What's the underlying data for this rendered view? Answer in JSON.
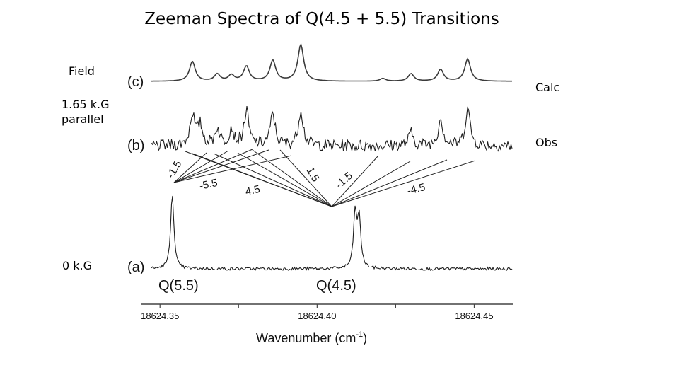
{
  "slide": {
    "title": "Zeeman Spectra of Q(4.5 + 5.5) Transitions",
    "field_label": "Field",
    "field_value_line1": "1.65 k.G",
    "field_value_line2": "parallel",
    "zero_field_label": "0 k.G",
    "calc_label": "Calc",
    "obs_label": "Obs"
  },
  "chart_data": {
    "type": "line",
    "xlabel": "Wavenumber (cm",
    "xlabel_sup": "-1",
    "xlabel_close": ")",
    "xlim": [
      18624.3441,
      18624.4625
    ],
    "ticks": [
      {
        "value": 18624.35,
        "label": "18624.35"
      },
      {
        "value": 18624.375,
        "label": ""
      },
      {
        "value": 18624.4,
        "label": "18624.40"
      },
      {
        "value": 18624.425,
        "label": ""
      },
      {
        "value": 18624.45,
        "label": "18624.45"
      }
    ],
    "grid": false,
    "traces": [
      {
        "panel": "(c)",
        "kind": "calculated",
        "color": "#3a3a3a",
        "noise": 0,
        "peaks": [
          {
            "x": 18624.3603,
            "h": 1.0
          },
          {
            "x": 18624.3682,
            "h": 0.35
          },
          {
            "x": 18624.3727,
            "h": 0.3
          },
          {
            "x": 18624.3775,
            "h": 0.75
          },
          {
            "x": 18624.3859,
            "h": 1.05
          },
          {
            "x": 18624.3948,
            "h": 1.85
          },
          {
            "x": 18624.4209,
            "h": 0.14
          },
          {
            "x": 18624.4299,
            "h": 0.38
          },
          {
            "x": 18624.4393,
            "h": 0.6
          },
          {
            "x": 18624.4479,
            "h": 1.12
          }
        ]
      },
      {
        "panel": "(b)",
        "kind": "observed",
        "color": "#1e1e1e",
        "noise": 0.35,
        "peaks": [
          {
            "x": 18624.3603,
            "h": 1.5
          },
          {
            "x": 18624.3628,
            "h": 0.9
          },
          {
            "x": 18624.3682,
            "h": 0.8
          },
          {
            "x": 18624.3727,
            "h": 0.8
          },
          {
            "x": 18624.3775,
            "h": 1.6
          },
          {
            "x": 18624.3859,
            "h": 1.5
          },
          {
            "x": 18624.3948,
            "h": 1.7
          },
          {
            "x": 18624.4299,
            "h": 0.6
          },
          {
            "x": 18624.4393,
            "h": 1.3
          },
          {
            "x": 18624.4479,
            "h": 1.8
          }
        ]
      },
      {
        "panel": "(a)",
        "kind": "observed",
        "color": "#1e1e1e",
        "noise": 0.1,
        "peaks": [
          {
            "x": 18624.3539,
            "h": 4.0
          },
          {
            "x": 18624.4121,
            "h": 2.9
          },
          {
            "x": 18624.4134,
            "h": 2.6
          }
        ]
      }
    ],
    "annotations": {
      "peak_labels": [
        {
          "text": "Q(5.5)",
          "x": 18624.3539
        },
        {
          "text": "Q(4.5)",
          "x": 18624.4125
        }
      ],
      "mj_labels": [
        "-1.5",
        "-5.5",
        "4.5",
        "1.5",
        "-1.5",
        "-4.5"
      ],
      "panel_labels": [
        "(c)",
        "(b)",
        "(a)"
      ]
    }
  }
}
